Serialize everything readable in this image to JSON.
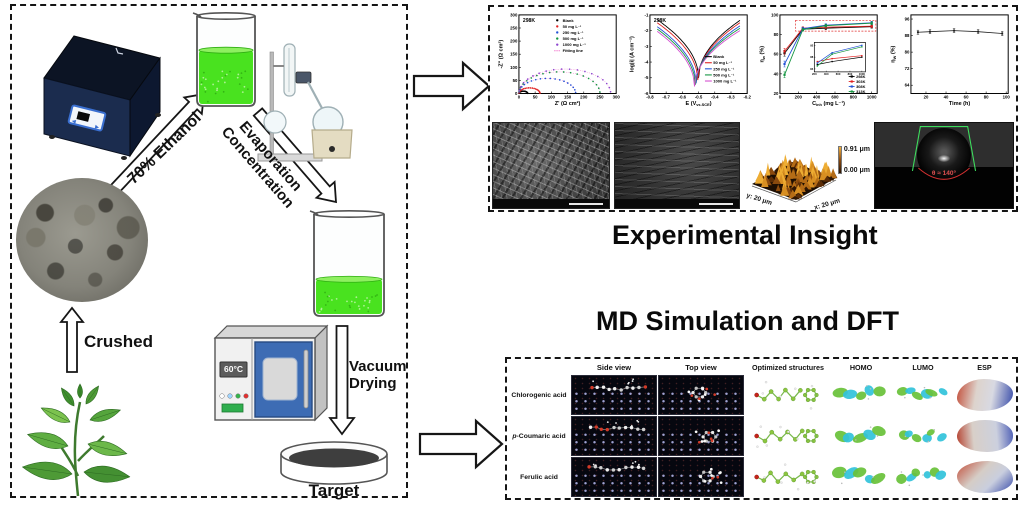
{
  "left_flow": {
    "ethanol_label": "70% Ethanol",
    "evaporation_line1": "Evaporation",
    "evaporation_line2": "Concentration",
    "crushed_label": "Crushed",
    "vacuum_line1": "Vacuum",
    "vacuum_line2": "Drying",
    "target_label": "Target",
    "oven_temp": "60°C"
  },
  "titles": {
    "experimental": "Experimental Insight",
    "md": "MD Simulation and DFT"
  },
  "afm": {
    "z_max": "0.91 μm",
    "z_min": "0.00 μm",
    "y_axis": "y: 20 μm",
    "x_axis": "x: 20 μm"
  },
  "contact_angle": {
    "annotation": "θ ≈ 140°"
  },
  "md_table": {
    "col_headers": [
      "Side view",
      "Top view"
    ],
    "rows": [
      "Chlorogenic acid",
      "p-Coumaric acid",
      "Ferulic acid"
    ],
    "dft_headers": [
      "Optimized structures",
      "HOMO",
      "LUMO",
      "ESP"
    ]
  },
  "chart_data": [
    {
      "id": "nyquist",
      "type": "scatter",
      "annotation": "298K",
      "xlabel": "Z' (Ω cm²)",
      "ylabel": "-Z'' (Ω cm²)",
      "xlim": [
        0,
        300
      ],
      "ylim": [
        0,
        300
      ],
      "xticks": [
        0,
        50,
        100,
        150,
        200,
        250,
        300
      ],
      "yticks": [
        0,
        50,
        100,
        150,
        200,
        250,
        300
      ],
      "legend_position": "top-right",
      "series": [
        {
          "name": "Blank",
          "color": "#000000",
          "semicircle_diameter": 27
        },
        {
          "name": "50 mg L⁻¹",
          "color": "#e02020",
          "semicircle_diameter": 65
        },
        {
          "name": "250 mg L⁻¹",
          "color": "#2251d6",
          "semicircle_diameter": 175
        },
        {
          "name": "500 mg L⁻¹",
          "color": "#149641",
          "semicircle_diameter": 250
        },
        {
          "name": "1000 mg L⁻¹",
          "color": "#8d46cf",
          "semicircle_diameter": 283
        },
        {
          "name": "Fitting line",
          "color": "#ef5fc4",
          "semicircle_diameter": null
        }
      ]
    },
    {
      "id": "tafel",
      "type": "line",
      "annotation": "298K",
      "xlabel": "E (V_{vs.SCE})",
      "ylabel": "log|i| (A cm⁻²)",
      "xlim": [
        -0.8,
        -0.2
      ],
      "ylim": [
        -6,
        -1
      ],
      "xticks": [
        -0.8,
        -0.7,
        -0.6,
        -0.5,
        -0.4,
        -0.3,
        -0.2
      ],
      "yticks": [
        -6,
        -5,
        -4,
        -3,
        -2,
        -1
      ],
      "legend_position": "bottom-right",
      "series": [
        {
          "name": "Blank",
          "color": "#000000",
          "ecorr": -0.5,
          "log_i_corr": -5.0,
          "y_left_edge": -1.3,
          "y_right_edge": -1.35
        },
        {
          "name": "50 mg L⁻¹",
          "color": "#e02020",
          "ecorr": -0.505,
          "log_i_corr": -5.15,
          "y_left_edge": -1.5,
          "y_right_edge": -1.5
        },
        {
          "name": "250 mg L⁻¹",
          "color": "#2251d6",
          "ecorr": -0.515,
          "log_i_corr": -5.35,
          "y_left_edge": -1.75,
          "y_right_edge": -1.7
        },
        {
          "name": "500 mg L⁻¹",
          "color": "#149641",
          "ecorr": -0.52,
          "log_i_corr": -5.45,
          "y_left_edge": -1.9,
          "y_right_edge": -1.85
        },
        {
          "name": "1000 mg L⁻¹",
          "color": "#d44fd0",
          "ecorr": -0.525,
          "log_i_corr": -5.55,
          "y_left_edge": -2.05,
          "y_right_edge": -2.0
        }
      ]
    },
    {
      "id": "efficiency",
      "type": "line",
      "xlabel": "C_{inh} (mg L⁻¹)",
      "ylabel": "η_{w} (%)",
      "xlim": [
        0,
        1060
      ],
      "ylim": [
        20,
        100
      ],
      "xticks": [
        0,
        200,
        400,
        600,
        800,
        1000
      ],
      "yticks": [
        20,
        40,
        60,
        80,
        100
      ],
      "x": [
        50,
        250,
        500,
        1000
      ],
      "series": [
        {
          "name": "298K",
          "color": "#000000",
          "values": [
            61,
            85.5,
            86.5,
            88
          ]
        },
        {
          "name": "303K",
          "color": "#e02020",
          "values": [
            63,
            86.5,
            87.5,
            88.5
          ]
        },
        {
          "name": "308K",
          "color": "#2251d6",
          "values": [
            50,
            86,
            89.5,
            92
          ]
        },
        {
          "name": "313K",
          "color": "#149641",
          "values": [
            39,
            85,
            89,
            91.5
          ]
        }
      ],
      "error_bars": [
        3,
        1.5,
        1.5,
        1.5
      ],
      "highlight_box": {
        "x": [
          170,
          1045
        ],
        "y": [
          83.5,
          94.5
        ],
        "color": "#e03030"
      },
      "inset": {
        "xlim": [
          200,
          1060
        ],
        "ylim": [
          83,
          93
        ],
        "xticks": [
          200,
          400,
          600,
          800,
          1000
        ],
        "yticks": [
          84,
          88,
          92
        ]
      },
      "legend_position": "bottom-right"
    },
    {
      "id": "stability",
      "type": "line",
      "xlabel": "Time (h)",
      "ylabel": "η_{W} (%)",
      "xlim": [
        5,
        102
      ],
      "ylim": [
        60,
        98
      ],
      "xticks": [
        20,
        40,
        60,
        80,
        100
      ],
      "yticks": [
        64,
        72,
        80,
        88,
        96
      ],
      "x": [
        12,
        24,
        48,
        72,
        96
      ],
      "series": [
        {
          "color": "#222222",
          "values": [
            89.6,
            89.9,
            90.4,
            89.9,
            89.0
          ]
        }
      ],
      "error_bars": [
        1,
        1,
        1,
        1,
        1
      ]
    }
  ]
}
